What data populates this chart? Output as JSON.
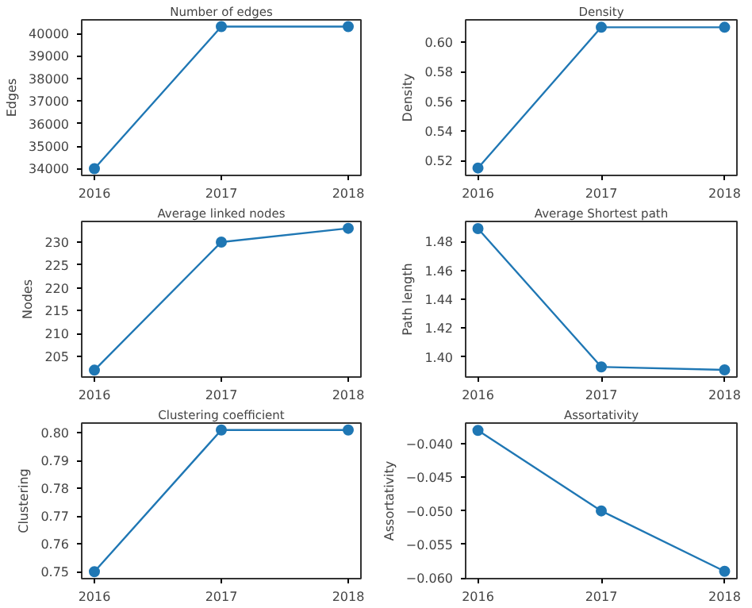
{
  "chart_data": [
    {
      "type": "line",
      "title": "Number of edges",
      "ylabel": "Edges",
      "categories": [
        "2016",
        "2017",
        "2018"
      ],
      "series": [
        {
          "color": "#1f77b4",
          "values": [
            34000,
            40300,
            40300
          ]
        }
      ],
      "ylim": [
        33700,
        40600
      ],
      "yticks": [
        34000,
        35000,
        36000,
        37000,
        38000,
        39000,
        40000
      ],
      "marker": "circle",
      "grid": false
    },
    {
      "type": "line",
      "title": "Density",
      "ylabel": "Density",
      "categories": [
        "2016",
        "2017",
        "2018"
      ],
      "series": [
        {
          "color": "#1f77b4",
          "values": [
            0.515,
            0.61,
            0.61
          ]
        }
      ],
      "ylim": [
        0.51,
        0.615
      ],
      "yticks": [
        {
          "value": 0.52,
          "label": "0.52"
        },
        {
          "value": 0.54,
          "label": "0.54"
        },
        {
          "value": 0.56,
          "label": "0.56"
        },
        {
          "value": 0.58,
          "label": "0.58"
        },
        {
          "value": 0.6,
          "label": "0.60"
        }
      ],
      "marker": "circle",
      "grid": false
    },
    {
      "type": "line",
      "title": "Average linked nodes",
      "ylabel": "Nodes",
      "categories": [
        "2016",
        "2017",
        "2018"
      ],
      "series": [
        {
          "color": "#1f77b4",
          "values": [
            202,
            230,
            233
          ]
        }
      ],
      "ylim": [
        200.5,
        234.5
      ],
      "yticks": [
        205,
        210,
        215,
        220,
        225,
        230
      ],
      "marker": "circle",
      "grid": false
    },
    {
      "type": "line",
      "title": "Average Shortest path",
      "ylabel": "Path length",
      "categories": [
        "2016",
        "2017",
        "2018"
      ],
      "series": [
        {
          "color": "#1f77b4",
          "values": [
            1.489,
            1.393,
            1.391
          ]
        }
      ],
      "ylim": [
        1.386,
        1.494
      ],
      "yticks": [
        {
          "value": 1.4,
          "label": "1.40"
        },
        {
          "value": 1.42,
          "label": "1.42"
        },
        {
          "value": 1.44,
          "label": "1.44"
        },
        {
          "value": 1.46,
          "label": "1.46"
        },
        {
          "value": 1.48,
          "label": "1.48"
        }
      ],
      "marker": "circle",
      "grid": false
    },
    {
      "type": "line",
      "title": "Clustering coefficient",
      "ylabel": "Clustering",
      "categories": [
        "2016",
        "2017",
        "2018"
      ],
      "series": [
        {
          "color": "#1f77b4",
          "values": [
            0.75,
            0.801,
            0.801
          ]
        }
      ],
      "ylim": [
        0.7475,
        0.8035
      ],
      "yticks": [
        {
          "value": 0.75,
          "label": "0.75"
        },
        {
          "value": 0.76,
          "label": "0.76"
        },
        {
          "value": 0.77,
          "label": "0.77"
        },
        {
          "value": 0.78,
          "label": "0.78"
        },
        {
          "value": 0.79,
          "label": "0.79"
        },
        {
          "value": 0.8,
          "label": "0.80"
        }
      ],
      "marker": "circle",
      "grid": false
    },
    {
      "type": "line",
      "title": "Assortativity",
      "ylabel": "Assortativity",
      "categories": [
        "2016",
        "2017",
        "2018"
      ],
      "series": [
        {
          "color": "#1f77b4",
          "values": [
            -0.038,
            -0.05,
            -0.059
          ]
        }
      ],
      "ylim": [
        -0.0601,
        -0.0369
      ],
      "yticks": [
        {
          "value": -0.06,
          "label": "−0.060"
        },
        {
          "value": -0.055,
          "label": "−0.055"
        },
        {
          "value": -0.05,
          "label": "−0.050"
        },
        {
          "value": -0.045,
          "label": "−0.045"
        },
        {
          "value": -0.04,
          "label": "−0.040"
        }
      ],
      "marker": "circle",
      "grid": false
    }
  ]
}
